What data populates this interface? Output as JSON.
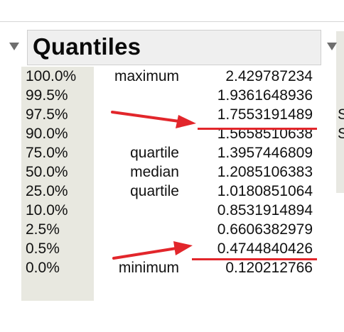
{
  "panel": {
    "title": "Quantiles"
  },
  "quantiles": [
    {
      "pct": "100.0%",
      "label": "maximum",
      "value": "2.429787234"
    },
    {
      "pct": "99.5%",
      "label": "",
      "value": "1.9361648936"
    },
    {
      "pct": "97.5%",
      "label": "",
      "value": "1.7553191489"
    },
    {
      "pct": "90.0%",
      "label": "",
      "value": "1.5658510638"
    },
    {
      "pct": "75.0%",
      "label": "quartile",
      "value": "1.3957446809"
    },
    {
      "pct": "50.0%",
      "label": "median",
      "value": "1.2085106383"
    },
    {
      "pct": "25.0%",
      "label": "quartile",
      "value": "1.0180851064"
    },
    {
      "pct": "10.0%",
      "label": "",
      "value": "0.8531914894"
    },
    {
      "pct": "2.5%",
      "label": "",
      "value": "0.6606382979"
    },
    {
      "pct": "0.5%",
      "label": "",
      "value": "0.4744840426"
    },
    {
      "pct": "0.0%",
      "label": "minimum",
      "value": "0.120212766"
    }
  ],
  "edge_clipped": [
    "S",
    "S"
  ],
  "colors": {
    "annotation": "#e2262b",
    "header_bg": "#efefef",
    "label_col_bg": "#e8e8e0"
  }
}
